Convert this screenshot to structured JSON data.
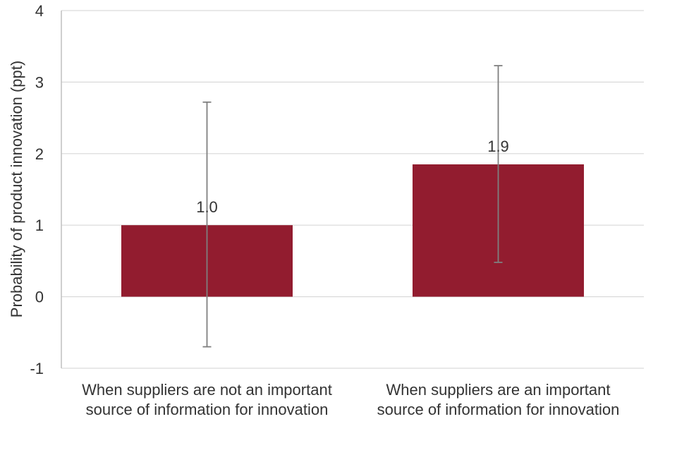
{
  "chart_data": {
    "type": "bar",
    "categories": [
      [
        "When suppliers are not an important",
        "source of information for innovation"
      ],
      [
        "When suppliers are an important",
        "source of information for innovation"
      ]
    ],
    "values": [
      1.0,
      1.85
    ],
    "data_labels": [
      "1.0",
      "1.9"
    ],
    "error_bars": [
      {
        "low": -0.7,
        "high": 2.72
      },
      {
        "low": 0.48,
        "high": 3.23
      }
    ],
    "xlabel": "",
    "ylabel": "Probability of product innovation (ppt)",
    "ylim": [
      -1,
      4
    ],
    "yticks": [
      -1,
      0,
      1,
      2,
      3,
      4
    ],
    "ytick_labels": [
      "-1",
      "0",
      "1",
      "2",
      "3",
      "4"
    ],
    "grid": true,
    "legend": "none",
    "colors": {
      "bar": "#921c2f",
      "error_bar": "#7f7f7f",
      "grid": "#d9d9d9",
      "axis": "#bfbfbf",
      "text": "#333333"
    }
  }
}
